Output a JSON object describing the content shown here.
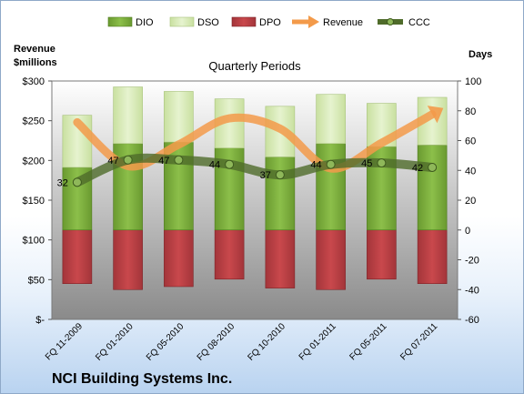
{
  "chart_data": {
    "type": "bar",
    "title": "Quarterly Periods",
    "company": "NCI Building Systems Inc.",
    "left_axis_label": [
      "Revenue",
      "$millions"
    ],
    "right_axis_label": "Days",
    "categories": [
      "FQ 11-2009",
      "FQ 01-2010",
      "FQ 05-2010",
      "FQ 08-2010",
      "FQ 10-2010",
      "FQ 01-2011",
      "FQ 05-2011",
      "FQ 07-2011"
    ],
    "left_ticks": [
      "$300",
      "$250",
      "$200",
      "$150",
      "$100",
      "$50",
      "$-"
    ],
    "right_ticks": [
      "100",
      "80",
      "60",
      "40",
      "20",
      "0",
      "-20",
      "-40",
      "-60"
    ],
    "left_range": [
      0,
      300
    ],
    "right_range": [
      -60,
      100
    ],
    "series_days": [
      {
        "name": "DIO",
        "values": [
          42,
          58,
          59,
          55,
          49,
          58,
          56,
          57
        ]
      },
      {
        "name": "DSO",
        "values": [
          35,
          38,
          34,
          33,
          34,
          33,
          29,
          32
        ]
      },
      {
        "name": "DPO",
        "values": [
          -36,
          -40,
          -38,
          -33,
          -39,
          -40,
          -33,
          -36
        ]
      }
    ],
    "revenue": {
      "name": "Revenue",
      "values": [
        248,
        193,
        220,
        253,
        240,
        190,
        222,
        258
      ]
    },
    "ccc": {
      "name": "CCC",
      "values": [
        32,
        47,
        47,
        44,
        37,
        44,
        45,
        42
      ],
      "labels": [
        "32",
        "47",
        "47",
        "44",
        "37",
        "44",
        "45",
        "42"
      ]
    },
    "legend": [
      "DIO",
      "DSO",
      "DPO",
      "Revenue",
      "CCC"
    ],
    "colors": {
      "dio": "#78a83c",
      "dso": "#d8ebb4",
      "dpo": "#b83c40",
      "revenue": "#f39a4a",
      "ccc": "#4f6b2a",
      "plot_top": "#ffffff",
      "plot_bottom": "#8c8c8c"
    }
  }
}
